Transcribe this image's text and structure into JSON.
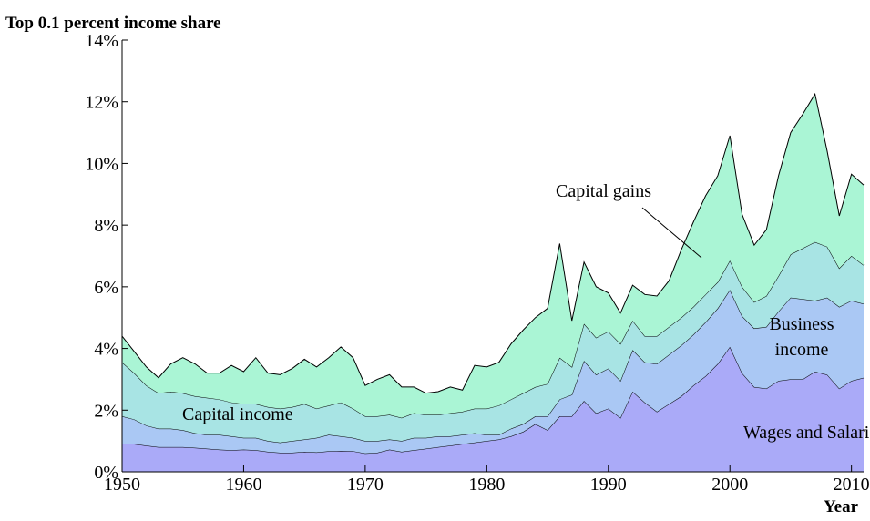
{
  "chart_data": {
    "type": "stacked_area",
    "title": "Top 0.1 percent income share",
    "x_label": "Year",
    "x": [
      1950,
      1951,
      1952,
      1953,
      1954,
      1955,
      1956,
      1957,
      1958,
      1959,
      1960,
      1961,
      1962,
      1963,
      1964,
      1965,
      1966,
      1967,
      1968,
      1969,
      1970,
      1971,
      1972,
      1973,
      1974,
      1975,
      1976,
      1977,
      1978,
      1979,
      1980,
      1981,
      1982,
      1983,
      1984,
      1985,
      1986,
      1987,
      1988,
      1989,
      1990,
      1991,
      1992,
      1993,
      1994,
      1995,
      1996,
      1997,
      1998,
      1999,
      2000,
      2001,
      2002,
      2003,
      2004,
      2005,
      2006,
      2007,
      2008,
      2009,
      2010,
      2011
    ],
    "series": [
      {
        "name": "Wages and Salaries",
        "color": "#aaaaf8",
        "values": [
          0.9,
          0.9,
          0.85,
          0.8,
          0.8,
          0.8,
          0.78,
          0.75,
          0.72,
          0.7,
          0.72,
          0.7,
          0.65,
          0.62,
          0.62,
          0.65,
          0.63,
          0.67,
          0.68,
          0.67,
          0.6,
          0.62,
          0.72,
          0.65,
          0.7,
          0.75,
          0.8,
          0.85,
          0.9,
          0.95,
          1.0,
          1.05,
          1.15,
          1.3,
          1.55,
          1.35,
          1.8,
          1.8,
          2.3,
          1.9,
          2.05,
          1.75,
          2.6,
          2.25,
          1.95,
          2.2,
          2.45,
          2.8,
          3.1,
          3.5,
          4.05,
          3.2,
          2.75,
          2.7,
          2.95,
          3.0,
          3.0,
          3.25,
          3.15,
          2.7,
          2.95,
          3.05
        ]
      },
      {
        "name": "Business income",
        "color": "#aac8f4",
        "values": [
          0.9,
          0.8,
          0.65,
          0.6,
          0.6,
          0.55,
          0.47,
          0.45,
          0.48,
          0.45,
          0.38,
          0.4,
          0.35,
          0.33,
          0.38,
          0.4,
          0.47,
          0.53,
          0.47,
          0.43,
          0.4,
          0.38,
          0.33,
          0.35,
          0.4,
          0.35,
          0.35,
          0.3,
          0.3,
          0.3,
          0.2,
          0.15,
          0.25,
          0.25,
          0.25,
          0.45,
          0.55,
          0.7,
          1.3,
          1.25,
          1.3,
          1.2,
          1.35,
          1.3,
          1.55,
          1.6,
          1.65,
          1.65,
          1.75,
          1.8,
          1.85,
          1.85,
          1.9,
          2.0,
          2.25,
          2.65,
          2.6,
          2.3,
          2.5,
          2.65,
          2.6,
          2.4
        ]
      },
      {
        "name": "Capital income",
        "color": "#a8e4e4",
        "values": [
          1.75,
          1.5,
          1.3,
          1.15,
          1.2,
          1.2,
          1.2,
          1.2,
          1.15,
          1.1,
          1.1,
          1.1,
          1.1,
          1.1,
          1.1,
          1.15,
          0.95,
          0.95,
          1.1,
          0.95,
          0.8,
          0.8,
          0.8,
          0.75,
          0.8,
          0.75,
          0.7,
          0.75,
          0.75,
          0.8,
          0.85,
          0.95,
          0.95,
          1.0,
          0.95,
          1.05,
          1.35,
          0.9,
          1.2,
          1.2,
          1.2,
          1.2,
          0.95,
          0.85,
          0.9,
          0.9,
          0.9,
          0.9,
          0.9,
          0.85,
          0.95,
          0.95,
          0.85,
          1.0,
          1.15,
          1.4,
          1.65,
          1.9,
          1.65,
          1.25,
          1.45,
          1.25
        ]
      },
      {
        "name": "Capital gains",
        "color": "#aaf5d5",
        "values": [
          0.85,
          0.7,
          0.6,
          0.5,
          0.9,
          1.15,
          1.05,
          0.8,
          0.85,
          1.2,
          1.05,
          1.5,
          1.1,
          1.1,
          1.25,
          1.45,
          1.35,
          1.55,
          1.8,
          1.65,
          1.0,
          1.2,
          1.3,
          1.0,
          0.85,
          0.7,
          0.75,
          0.85,
          0.7,
          1.4,
          1.35,
          1.4,
          1.8,
          2.05,
          2.25,
          2.45,
          3.7,
          1.5,
          2.0,
          1.65,
          1.25,
          1.0,
          1.15,
          1.35,
          1.3,
          1.5,
          2.2,
          2.75,
          3.2,
          3.45,
          4.05,
          2.35,
          1.85,
          2.15,
          3.25,
          3.95,
          4.35,
          4.8,
          3.1,
          1.7,
          2.65,
          2.6
        ]
      }
    ],
    "xlim": [
      1950,
      2011
    ],
    "xticks": [
      1950,
      1960,
      1970,
      1980,
      1990,
      2000,
      2010
    ],
    "ylim": [
      0,
      14
    ],
    "yticks": [
      {
        "value": 0,
        "label": "0%"
      },
      {
        "value": 2,
        "label": "2%"
      },
      {
        "value": 4,
        "label": "4%"
      },
      {
        "value": 6,
        "label": "6%"
      },
      {
        "value": 8,
        "label": "8%"
      },
      {
        "value": 10,
        "label": "10%"
      },
      {
        "value": 12,
        "label": "12%"
      },
      {
        "value": 14,
        "label": "14%"
      }
    ]
  }
}
